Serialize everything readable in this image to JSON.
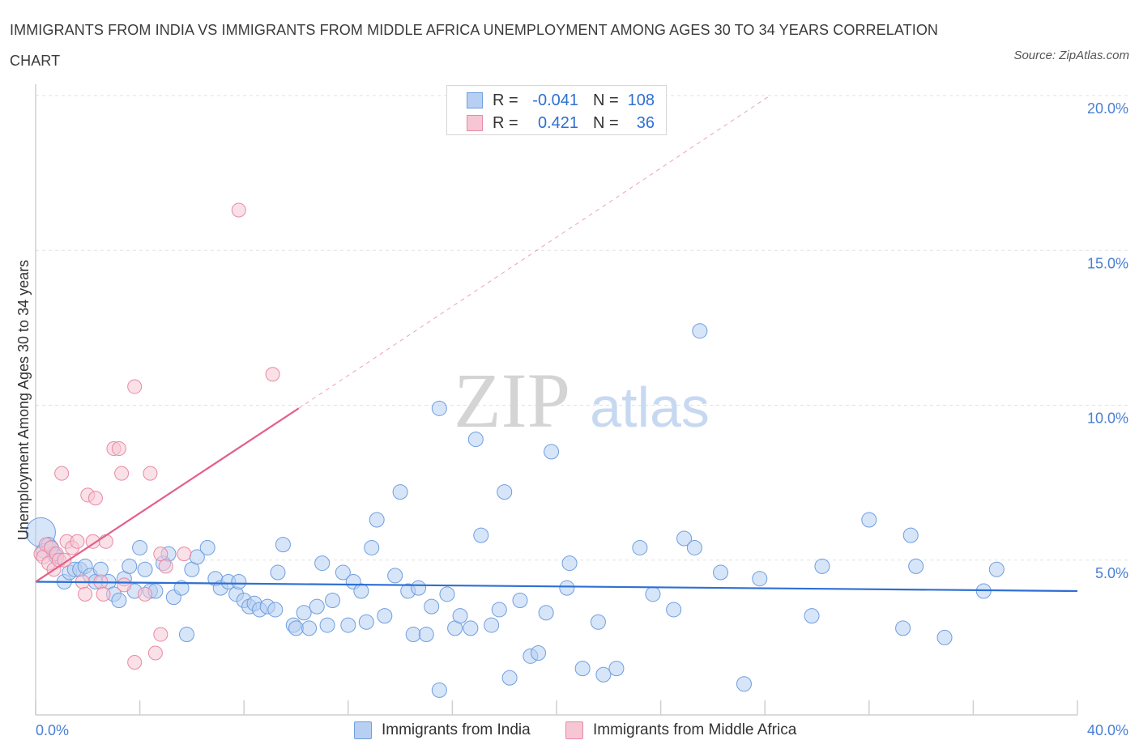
{
  "header": {
    "title": "IMMIGRANTS FROM INDIA VS IMMIGRANTS FROM MIDDLE AFRICA UNEMPLOYMENT AMONG AGES 30 TO 34 YEARS CORRELATION CHART",
    "source": "Source: ZipAtlas.com"
  },
  "watermark": {
    "zip": "ZIP",
    "atlas": "atlas"
  },
  "legend": {
    "r_label": "R =",
    "n_label": "N =",
    "rows": [
      {
        "r": "-0.041",
        "n": "108"
      },
      {
        "r": "0.421",
        "n": "36"
      }
    ]
  },
  "colors": {
    "india_fill": "#b7cff2",
    "india_stroke": "#6f9ee0",
    "india_line": "#2e6fd4",
    "africa_fill": "#f6c6d4",
    "africa_stroke": "#e88aa6",
    "africa_line": "#e3608a",
    "axis_text": "#4a7fd4",
    "grid": "#e2e2e2"
  },
  "chart_data": {
    "type": "scatter",
    "title": "IMMIGRANTS FROM INDIA VS IMMIGRANTS FROM MIDDLE AFRICA UNEMPLOYMENT AMONG AGES 30 TO 34 YEARS CORRELATION CHART",
    "xlabel": "",
    "ylabel": "Unemployment Among Ages 30 to 34 years",
    "xlim": [
      0,
      40
    ],
    "ylim": [
      0,
      20
    ],
    "x_tick_labels": [
      "0.0%",
      "40.0%"
    ],
    "y_ticks": [
      5,
      10,
      15,
      20
    ],
    "y_tick_labels": [
      "5.0%",
      "10.0%",
      "15.0%",
      "20.0%"
    ],
    "grid": true,
    "legend_position": "top-center",
    "series": [
      {
        "name": "Immigrants from India",
        "R": -0.041,
        "N": 108,
        "trend": {
          "x": [
            0,
            40
          ],
          "y": [
            4.3,
            4.0
          ]
        },
        "points": [
          [
            0.2,
            5.9
          ],
          [
            0.3,
            5.3
          ],
          [
            0.5,
            5.5
          ],
          [
            0.6,
            5.4
          ],
          [
            0.7,
            5.2
          ],
          [
            0.8,
            5.1
          ],
          [
            1.1,
            4.3
          ],
          [
            1.3,
            4.6
          ],
          [
            1.5,
            4.7
          ],
          [
            1.7,
            4.7
          ],
          [
            1.9,
            4.8
          ],
          [
            2.1,
            4.5
          ],
          [
            2.3,
            4.3
          ],
          [
            2.5,
            4.7
          ],
          [
            2.8,
            4.3
          ],
          [
            3.0,
            3.9
          ],
          [
            3.2,
            3.7
          ],
          [
            3.4,
            4.4
          ],
          [
            3.6,
            4.8
          ],
          [
            3.8,
            4.0
          ],
          [
            4.0,
            5.4
          ],
          [
            4.2,
            4.7
          ],
          [
            4.4,
            4.0
          ],
          [
            4.6,
            4.0
          ],
          [
            4.9,
            4.9
          ],
          [
            5.1,
            5.2
          ],
          [
            5.3,
            3.8
          ],
          [
            5.6,
            4.1
          ],
          [
            5.8,
            2.6
          ],
          [
            6.0,
            4.7
          ],
          [
            6.2,
            5.1
          ],
          [
            6.6,
            5.4
          ],
          [
            6.9,
            4.4
          ],
          [
            7.1,
            4.1
          ],
          [
            7.4,
            4.3
          ],
          [
            7.7,
            3.9
          ],
          [
            7.8,
            4.3
          ],
          [
            8.0,
            3.7
          ],
          [
            8.2,
            3.5
          ],
          [
            8.4,
            3.6
          ],
          [
            8.6,
            3.4
          ],
          [
            8.9,
            3.5
          ],
          [
            9.2,
            3.4
          ],
          [
            9.3,
            4.6
          ],
          [
            9.5,
            5.5
          ],
          [
            9.9,
            2.9
          ],
          [
            10.0,
            2.8
          ],
          [
            10.3,
            3.3
          ],
          [
            10.5,
            2.8
          ],
          [
            10.8,
            3.5
          ],
          [
            11.0,
            4.9
          ],
          [
            11.2,
            2.9
          ],
          [
            11.4,
            3.7
          ],
          [
            11.8,
            4.6
          ],
          [
            12.0,
            2.9
          ],
          [
            12.2,
            4.3
          ],
          [
            12.5,
            4.0
          ],
          [
            12.7,
            3.0
          ],
          [
            12.9,
            5.4
          ],
          [
            13.1,
            6.3
          ],
          [
            13.4,
            3.2
          ],
          [
            13.8,
            4.5
          ],
          [
            14.0,
            7.2
          ],
          [
            14.3,
            4.0
          ],
          [
            14.5,
            2.6
          ],
          [
            14.7,
            4.1
          ],
          [
            15.0,
            2.6
          ],
          [
            15.2,
            3.5
          ],
          [
            15.5,
            0.8
          ],
          [
            15.5,
            9.9
          ],
          [
            15.8,
            3.9
          ],
          [
            16.1,
            2.8
          ],
          [
            16.3,
            3.2
          ],
          [
            16.7,
            2.8
          ],
          [
            16.9,
            8.9
          ],
          [
            17.1,
            5.8
          ],
          [
            17.5,
            2.9
          ],
          [
            17.8,
            3.4
          ],
          [
            18.0,
            7.2
          ],
          [
            18.2,
            1.2
          ],
          [
            18.6,
            3.7
          ],
          [
            19.0,
            1.9
          ],
          [
            19.3,
            2.0
          ],
          [
            19.6,
            3.3
          ],
          [
            19.8,
            8.5
          ],
          [
            20.4,
            4.1
          ],
          [
            20.5,
            4.9
          ],
          [
            21.0,
            1.5
          ],
          [
            21.6,
            3.0
          ],
          [
            21.8,
            1.3
          ],
          [
            22.3,
            1.5
          ],
          [
            23.2,
            5.4
          ],
          [
            23.7,
            3.9
          ],
          [
            24.5,
            3.4
          ],
          [
            24.9,
            5.7
          ],
          [
            25.3,
            5.4
          ],
          [
            25.5,
            12.4
          ],
          [
            26.3,
            4.6
          ],
          [
            27.2,
            1.0
          ],
          [
            27.8,
            4.4
          ],
          [
            29.8,
            3.2
          ],
          [
            30.2,
            4.8
          ],
          [
            32.0,
            6.3
          ],
          [
            33.3,
            2.8
          ],
          [
            33.6,
            5.8
          ],
          [
            33.8,
            4.8
          ],
          [
            34.9,
            2.5
          ],
          [
            36.4,
            4.0
          ],
          [
            36.9,
            4.7
          ]
        ]
      },
      {
        "name": "Immigrants from Middle Africa",
        "R": 0.421,
        "N": 36,
        "trend": {
          "x": [
            0,
            10.1
          ],
          "y": [
            4.3,
            9.9
          ],
          "dashed_extension": {
            "x": [
              10.1,
              28.2
            ],
            "y": [
              9.9,
              20.0
            ]
          }
        },
        "points": [
          [
            0.2,
            5.2
          ],
          [
            0.3,
            5.1
          ],
          [
            0.4,
            5.5
          ],
          [
            0.5,
            4.9
          ],
          [
            0.6,
            5.4
          ],
          [
            0.7,
            4.7
          ],
          [
            0.8,
            5.2
          ],
          [
            0.9,
            5.0
          ],
          [
            1.0,
            7.8
          ],
          [
            1.2,
            5.6
          ],
          [
            1.4,
            5.4
          ],
          [
            1.6,
            5.6
          ],
          [
            1.8,
            4.3
          ],
          [
            1.9,
            3.9
          ],
          [
            2.0,
            7.1
          ],
          [
            2.2,
            5.6
          ],
          [
            2.3,
            7.0
          ],
          [
            2.5,
            4.3
          ],
          [
            2.6,
            3.9
          ],
          [
            3.0,
            8.6
          ],
          [
            3.2,
            8.6
          ],
          [
            3.3,
            7.8
          ],
          [
            3.4,
            4.2
          ],
          [
            3.8,
            10.6
          ],
          [
            3.8,
            1.7
          ],
          [
            4.2,
            3.9
          ],
          [
            4.4,
            7.8
          ],
          [
            4.6,
            2.0
          ],
          [
            4.8,
            2.6
          ],
          [
            4.8,
            5.2
          ],
          [
            5.0,
            4.8
          ],
          [
            5.7,
            5.2
          ],
          [
            7.8,
            16.3
          ],
          [
            9.1,
            11.0
          ],
          [
            1.1,
            5.0
          ],
          [
            2.7,
            5.6
          ]
        ]
      }
    ]
  },
  "bottom_legend": {
    "items": [
      {
        "label": "Immigrants from India"
      },
      {
        "label": "Immigrants from Middle Africa"
      }
    ]
  }
}
